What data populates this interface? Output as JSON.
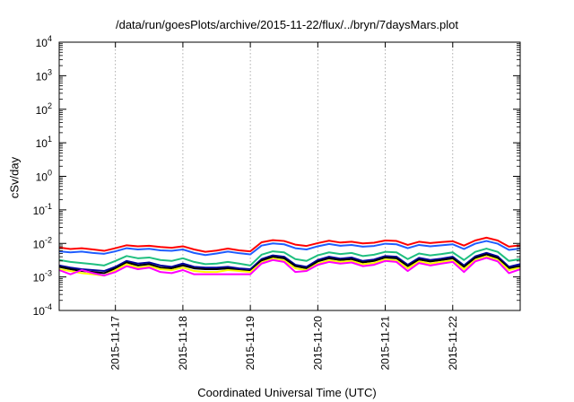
{
  "chart_data": {
    "type": "line",
    "title": "/data/run/goesPlots/archive/2015-11-22/flux/../bryn/7daysMars.plot",
    "xlabel": "Coordinated Universal Time (UTC)",
    "ylabel": "cSv/day",
    "yscale": "log",
    "ylim": [
      0.0001,
      10000
    ],
    "yticks": [
      {
        "value": 0.0001,
        "base": "10",
        "exp": "-4"
      },
      {
        "value": 0.001,
        "base": "10",
        "exp": "-3"
      },
      {
        "value": 0.01,
        "base": "10",
        "exp": "-2"
      },
      {
        "value": 0.1,
        "base": "10",
        "exp": "-1"
      },
      {
        "value": 1,
        "base": "10",
        "exp": "0"
      },
      {
        "value": 10,
        "base": "10",
        "exp": "1"
      },
      {
        "value": 100,
        "base": "10",
        "exp": "2"
      },
      {
        "value": 1000,
        "base": "10",
        "exp": "3"
      },
      {
        "value": 10000,
        "base": "10",
        "exp": "4"
      }
    ],
    "xlim": [
      "2015-11-16 04:00",
      "2015-11-23 00:00"
    ],
    "xticks": [
      "2015-11-17",
      "2015-11-18",
      "2015-11-19",
      "2015-11-20",
      "2015-11-21",
      "2015-11-22"
    ],
    "grid": true,
    "legend": "none",
    "x": [
      "2015-11-16 04:00",
      "2015-11-16 08:00",
      "2015-11-16 12:00",
      "2015-11-16 16:00",
      "2015-11-16 20:00",
      "2015-11-17 00:00",
      "2015-11-17 04:00",
      "2015-11-17 08:00",
      "2015-11-17 12:00",
      "2015-11-17 16:00",
      "2015-11-17 20:00",
      "2015-11-18 00:00",
      "2015-11-18 04:00",
      "2015-11-18 08:00",
      "2015-11-18 12:00",
      "2015-11-18 16:00",
      "2015-11-18 20:00",
      "2015-11-19 00:00",
      "2015-11-19 04:00",
      "2015-11-19 08:00",
      "2015-11-19 12:00",
      "2015-11-19 16:00",
      "2015-11-19 20:00",
      "2015-11-20 00:00",
      "2015-11-20 04:00",
      "2015-11-20 08:00",
      "2015-11-20 12:00",
      "2015-11-20 16:00",
      "2015-11-20 20:00",
      "2015-11-21 00:00",
      "2015-11-21 04:00",
      "2015-11-21 08:00",
      "2015-11-21 12:00",
      "2015-11-21 16:00",
      "2015-11-21 20:00",
      "2015-11-22 00:00",
      "2015-11-22 04:00",
      "2015-11-22 08:00",
      "2015-11-22 12:00",
      "2015-11-22 16:00",
      "2015-11-22 20:00",
      "2015-11-23 00:00"
    ],
    "series": [
      {
        "color": "#ff0000",
        "values": [
          0.0075,
          0.0068,
          0.0072,
          0.0066,
          0.006,
          0.0072,
          0.0088,
          0.0082,
          0.0085,
          0.0078,
          0.0074,
          0.0082,
          0.0066,
          0.0056,
          0.0061,
          0.007,
          0.0062,
          0.0058,
          0.0108,
          0.0125,
          0.0118,
          0.0092,
          0.0084,
          0.0102,
          0.012,
          0.0106,
          0.0112,
          0.01,
          0.0105,
          0.0122,
          0.0118,
          0.009,
          0.0112,
          0.0102,
          0.011,
          0.0116,
          0.0086,
          0.0122,
          0.0148,
          0.0122,
          0.008,
          0.0088
        ]
      },
      {
        "color": "#1f5cff",
        "values": [
          0.0058,
          0.0054,
          0.0057,
          0.0052,
          0.0049,
          0.0058,
          0.0072,
          0.0066,
          0.0069,
          0.0062,
          0.006,
          0.0066,
          0.0052,
          0.0045,
          0.005,
          0.0057,
          0.0051,
          0.0047,
          0.0086,
          0.01,
          0.0094,
          0.0072,
          0.0066,
          0.0082,
          0.0096,
          0.0085,
          0.009,
          0.008,
          0.0084,
          0.0098,
          0.0094,
          0.0072,
          0.009,
          0.0082,
          0.0088,
          0.0094,
          0.0068,
          0.0098,
          0.0118,
          0.0098,
          0.0064,
          0.007
        ]
      },
      {
        "color": "#1fbf7f",
        "values": [
          0.0032,
          0.0028,
          0.0026,
          0.0024,
          0.0022,
          0.003,
          0.0042,
          0.0036,
          0.0038,
          0.0032,
          0.003,
          0.0036,
          0.0028,
          0.0024,
          0.0025,
          0.0028,
          0.0025,
          0.0022,
          0.0046,
          0.0058,
          0.0054,
          0.0034,
          0.003,
          0.0044,
          0.0054,
          0.0048,
          0.0052,
          0.0042,
          0.0046,
          0.0056,
          0.0054,
          0.0034,
          0.005,
          0.0044,
          0.0048,
          0.0054,
          0.0032,
          0.0056,
          0.007,
          0.0056,
          0.003,
          0.0034
        ]
      },
      {
        "color": "#00009a",
        "values": [
          0.0022,
          0.0019,
          0.0017,
          0.0016,
          0.0015,
          0.002,
          0.003,
          0.0025,
          0.0027,
          0.0022,
          0.002,
          0.0025,
          0.002,
          0.0019,
          0.0019,
          0.002,
          0.0018,
          0.0017,
          0.0034,
          0.0044,
          0.004,
          0.0023,
          0.002,
          0.0032,
          0.004,
          0.0035,
          0.0038,
          0.003,
          0.0033,
          0.0042,
          0.004,
          0.0023,
          0.0037,
          0.0032,
          0.0035,
          0.004,
          0.0022,
          0.0041,
          0.0052,
          0.0041,
          0.002,
          0.0024
        ]
      },
      {
        "color": "#000000",
        "values": [
          0.002,
          0.0017,
          0.0015,
          0.0014,
          0.0013,
          0.0018,
          0.0027,
          0.0022,
          0.0024,
          0.0019,
          0.0018,
          0.0022,
          0.0018,
          0.0017,
          0.0017,
          0.0018,
          0.0016,
          0.0015,
          0.0031,
          0.004,
          0.0036,
          0.0021,
          0.0018,
          0.0029,
          0.0036,
          0.0032,
          0.0034,
          0.0027,
          0.003,
          0.0038,
          0.0036,
          0.0021,
          0.0033,
          0.0029,
          0.0032,
          0.0036,
          0.002,
          0.0037,
          0.0047,
          0.0037,
          0.0018,
          0.0021
        ]
      },
      {
        "color": "#ffff00",
        "values": [
          0.0017,
          0.0015,
          0.0013,
          0.0012,
          0.0011,
          0.0016,
          0.0024,
          0.0019,
          0.0021,
          0.0017,
          0.0016,
          0.0019,
          0.0015,
          0.0014,
          0.0014,
          0.0016,
          0.0015,
          0.0014,
          0.0027,
          0.0035,
          0.0031,
          0.0018,
          0.0016,
          0.0025,
          0.0031,
          0.0028,
          0.003,
          0.0024,
          0.0026,
          0.0033,
          0.0031,
          0.0018,
          0.0029,
          0.0025,
          0.0028,
          0.0031,
          0.0017,
          0.0032,
          0.0041,
          0.0032,
          0.0016,
          0.0019
        ]
      },
      {
        "color": "#ff00ff",
        "values": [
          0.0016,
          0.0012,
          0.0016,
          0.0013,
          0.0011,
          0.0014,
          0.0021,
          0.0017,
          0.0019,
          0.0014,
          0.0013,
          0.0016,
          0.0012,
          0.0012,
          0.0012,
          0.0012,
          0.0012,
          0.0012,
          0.0025,
          0.0032,
          0.0028,
          0.0014,
          0.0015,
          0.0023,
          0.0028,
          0.0025,
          0.0027,
          0.0021,
          0.0023,
          0.003,
          0.0028,
          0.0015,
          0.0026,
          0.0022,
          0.0025,
          0.0028,
          0.0014,
          0.0029,
          0.0037,
          0.0029,
          0.0013,
          0.0017
        ]
      }
    ]
  }
}
